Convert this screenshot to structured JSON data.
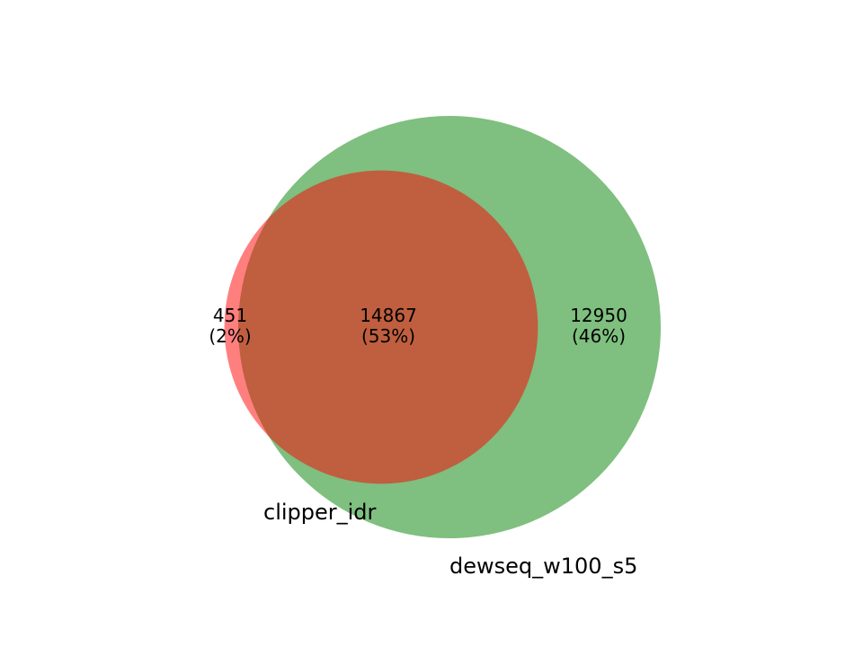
{
  "chart_data": {
    "type": "venn",
    "sets": [
      {
        "name": "clipper_idr",
        "color": "#ff0000",
        "opacity": 0.5
      },
      {
        "name": "dewseq_w100_s5",
        "color": "#008000",
        "opacity": 0.5
      }
    ],
    "regions": [
      {
        "id": "only_a",
        "sets": [
          "clipper_idr"
        ],
        "count": "451",
        "percent": "(2%)"
      },
      {
        "id": "both",
        "sets": [
          "clipper_idr",
          "dewseq_w100_s5"
        ],
        "count": "14867",
        "percent": "(53%)"
      },
      {
        "id": "only_b",
        "sets": [
          "dewseq_w100_s5"
        ],
        "count": "12950",
        "percent": "(46%)"
      }
    ],
    "values": {
      "only_a": 451,
      "both": 14867,
      "only_b": 12950
    }
  }
}
